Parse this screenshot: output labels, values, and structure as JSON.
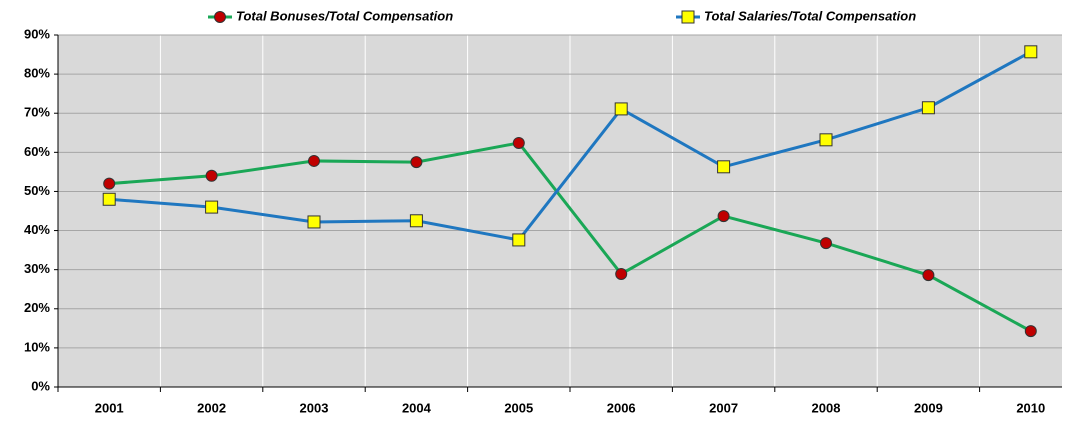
{
  "chart_data": {
    "type": "line",
    "categories": [
      "2001",
      "2002",
      "2003",
      "2004",
      "2005",
      "2006",
      "2007",
      "2008",
      "2009",
      "2010"
    ],
    "series": [
      {
        "name": "Total Bonuses/Total Compensation",
        "color": "#1aa756",
        "marker": "circle",
        "marker_color": "#c00000",
        "values": [
          52,
          54,
          57.8,
          57.5,
          62.4,
          28.9,
          43.7,
          36.8,
          28.6,
          14.3
        ]
      },
      {
        "name": "Total Salaries/Total Compensation",
        "color": "#1f77c0",
        "marker": "square",
        "marker_color": "#ffff00",
        "values": [
          48,
          46,
          42.2,
          42.5,
          37.6,
          71.1,
          56.3,
          63.2,
          71.4,
          85.7
        ]
      }
    ],
    "ylim": [
      0,
      90
    ],
    "yticks": [
      {
        "value": 0,
        "label": "0%"
      },
      {
        "value": 10,
        "label": "10%"
      },
      {
        "value": 20,
        "label": "20%"
      },
      {
        "value": 30,
        "label": "30%"
      },
      {
        "value": 40,
        "label": "40%"
      },
      {
        "value": 50,
        "label": "50%"
      },
      {
        "value": 60,
        "label": "60%"
      },
      {
        "value": 70,
        "label": "70%"
      },
      {
        "value": 80,
        "label": "80%"
      },
      {
        "value": 90,
        "label": "90%"
      }
    ],
    "grid": true
  }
}
